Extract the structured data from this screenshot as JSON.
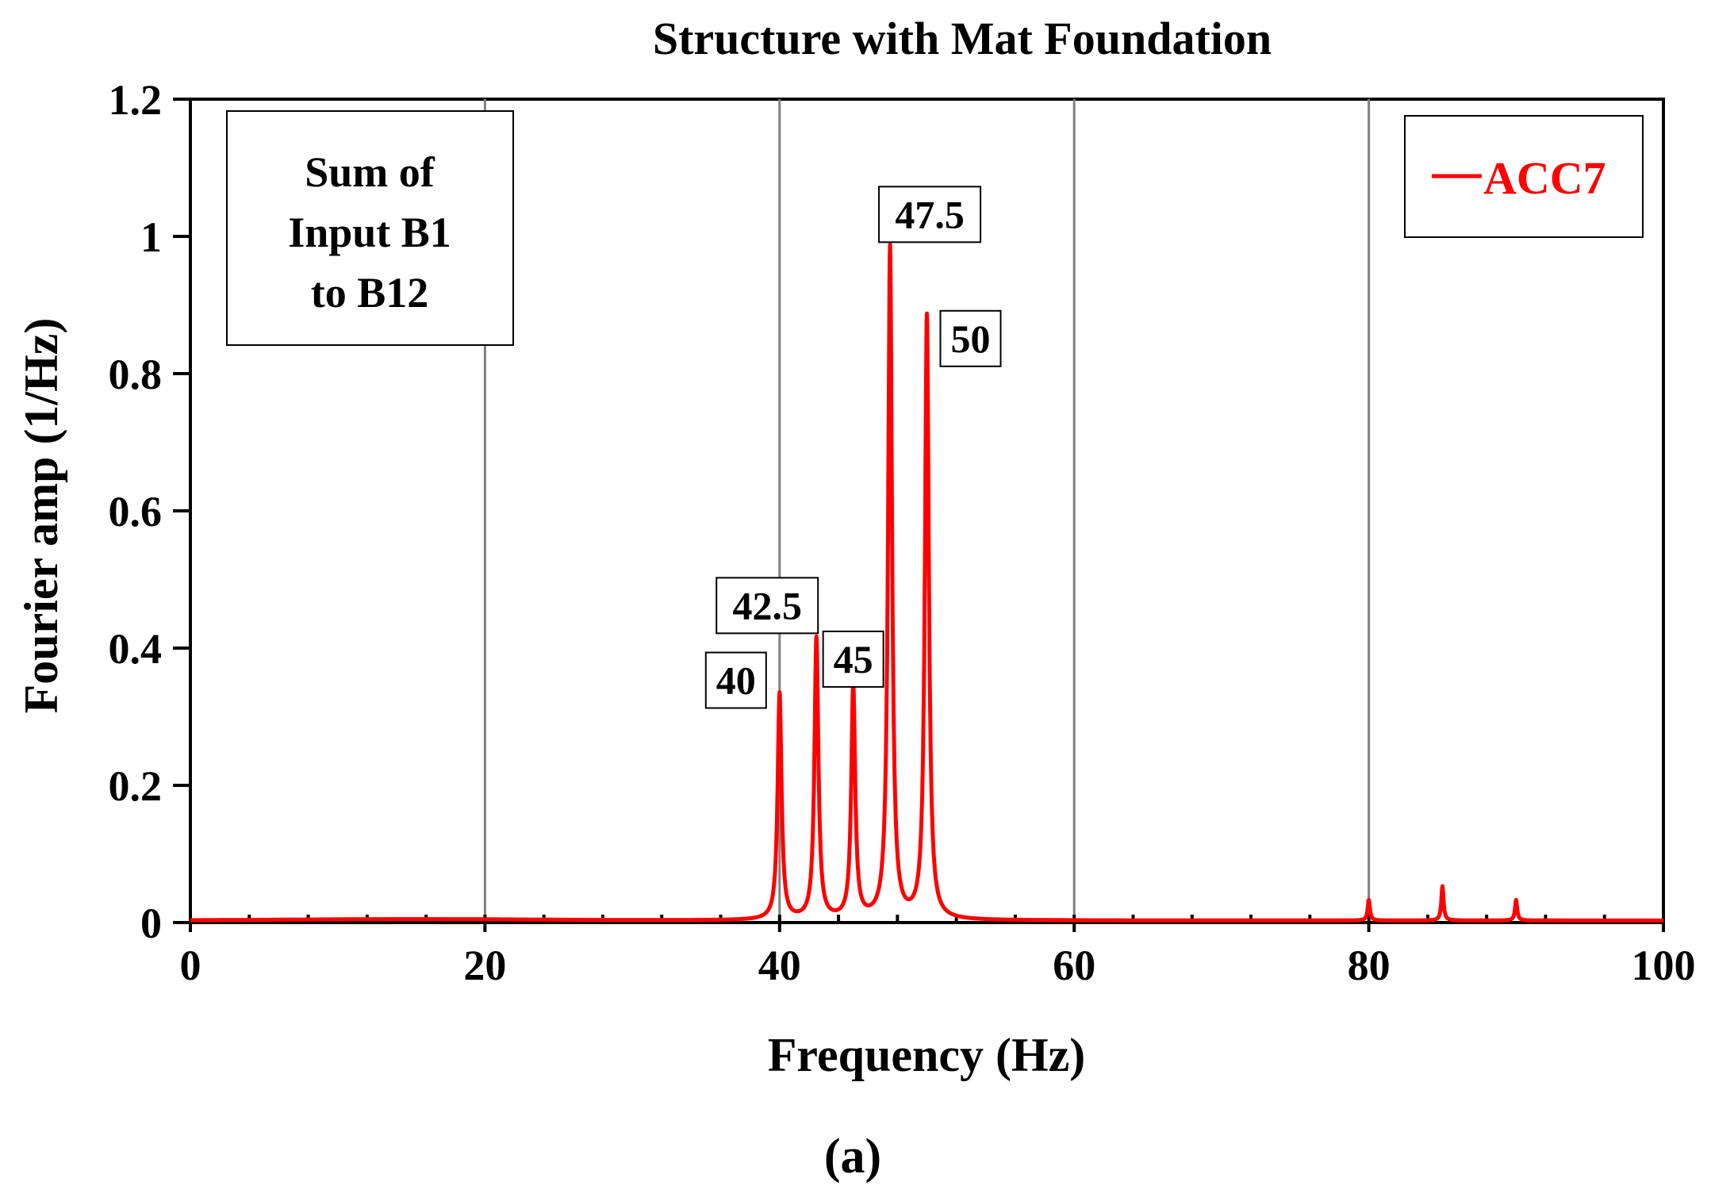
{
  "chart_data": {
    "type": "line",
    "title": "Structure with Mat Foundation",
    "xlabel": "Frequency (Hz)",
    "ylabel": "Fourier amp (1/Hz)",
    "xlim": [
      0,
      100
    ],
    "ylim": [
      0,
      1.2
    ],
    "x_ticks": [
      "0",
      "20",
      "40",
      "60",
      "80",
      "100"
    ],
    "y_ticks": [
      "0",
      "0.2",
      "0.4",
      "0.6",
      "0.8",
      "1",
      "1.2"
    ],
    "grid": "vertical",
    "legend_position": "top-right",
    "series": [
      {
        "name": "ACC7",
        "color": "#ff0000",
        "peaks": [
          {
            "x": 40,
            "y": 0.33
          },
          {
            "x": 42.5,
            "y": 0.41
          },
          {
            "x": 45,
            "y": 0.34
          },
          {
            "x": 47.5,
            "y": 0.98
          },
          {
            "x": 50,
            "y": 0.88
          },
          {
            "x": 80,
            "y": 0.03
          },
          {
            "x": 85,
            "y": 0.05
          },
          {
            "x": 90,
            "y": 0.03
          }
        ]
      }
    ],
    "peak_annotations": [
      {
        "label": "40",
        "x": 40,
        "y": 0.33
      },
      {
        "label": "42.5",
        "x": 42.5,
        "y": 0.41
      },
      {
        "label": "45",
        "x": 45,
        "y": 0.34
      },
      {
        "label": "47.5",
        "x": 47.5,
        "y": 0.98
      },
      {
        "label": "50",
        "x": 50,
        "y": 0.88
      }
    ],
    "note_box": [
      "Sum of",
      "Input B1",
      "to B12"
    ],
    "caption": "(a)"
  }
}
